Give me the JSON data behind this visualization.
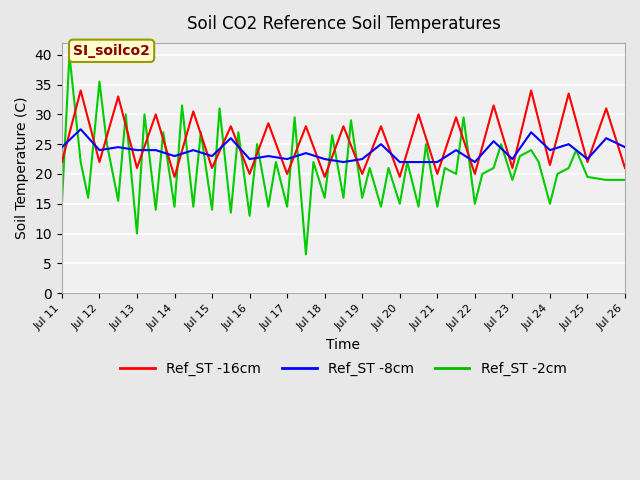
{
  "title": "Soil CO2 Reference Soil Temperatures",
  "xlabel": "Time",
  "ylabel": "Soil Temperature (C)",
  "ylim": [
    0,
    42
  ],
  "yticks": [
    0,
    5,
    10,
    15,
    20,
    25,
    30,
    35,
    40
  ],
  "bg_color": "#e8e8e8",
  "plot_bg_color": "#f0f0f0",
  "annotation_text": "SI_soilco2",
  "annotation_color": "#8b0000",
  "annotation_bg": "#ffffcc",
  "annotation_border": "#999900",
  "legend_labels": [
    "Ref_ST -16cm",
    "Ref_ST -8cm",
    "Ref_ST -2cm"
  ],
  "legend_colors": [
    "#ff0000",
    "#0000ff",
    "#00bb00"
  ],
  "line_colors": [
    "#ff0000",
    "#0000ff",
    "#00cc00"
  ],
  "xtick_labels": [
    "Jul 11",
    "Jul 12",
    "Jul 13",
    "Jul 14",
    "Jul 15",
    "Jul 16",
    "Jul 17",
    "Jul 18",
    "Jul 19",
    "Jul 20",
    "Jul 21",
    "Jul 22",
    "Jul 23",
    "Jul 24",
    "Jul 25",
    "Jul 26"
  ],
  "red_x": [
    0,
    0.5,
    1.0,
    1.5,
    2.0,
    2.5,
    3.0,
    3.5,
    4.0,
    4.5,
    5.0,
    5.5,
    6.0,
    6.5,
    7.0,
    7.5,
    8.0,
    8.5,
    9.0,
    9.5,
    10.0,
    10.5,
    11.0,
    11.5,
    12.0,
    12.5,
    13.0,
    13.5,
    14.0,
    14.5,
    15.0
  ],
  "red_y": [
    22,
    34,
    22,
    33,
    21,
    30,
    19.5,
    30.5,
    21,
    28,
    20,
    28.5,
    20,
    28,
    19.5,
    28,
    20,
    28,
    19.5,
    30,
    20,
    29.5,
    20,
    31.5,
    21,
    34,
    21.5,
    33.5,
    22,
    31,
    21
  ],
  "blue_x": [
    0,
    0.5,
    1.0,
    1.5,
    2.0,
    2.5,
    3.0,
    3.5,
    4.0,
    4.5,
    5.0,
    5.5,
    6.0,
    6.5,
    7.0,
    7.5,
    8.0,
    8.5,
    9.0,
    9.5,
    10.0,
    10.5,
    11.0,
    11.5,
    12.0,
    12.5,
    13.0,
    13.5,
    14.0,
    14.5,
    15.0
  ],
  "blue_y": [
    24.5,
    27.5,
    24,
    24.5,
    24,
    24,
    23,
    24,
    23,
    26,
    22.5,
    23,
    22.5,
    23.5,
    22.5,
    22,
    22.5,
    25,
    22,
    22,
    22,
    24,
    22,
    25.5,
    22.5,
    27,
    24,
    25,
    22.5,
    26,
    24.5
  ],
  "green_x": [
    0,
    0.2,
    0.5,
    0.7,
    1.0,
    1.2,
    1.5,
    1.7,
    2.0,
    2.2,
    2.5,
    2.7,
    3.0,
    3.2,
    3.5,
    3.7,
    4.0,
    4.2,
    4.5,
    4.7,
    5.0,
    5.2,
    5.5,
    5.7,
    6.0,
    6.2,
    6.5,
    6.7,
    7.0,
    7.2,
    7.5,
    7.7,
    8.0,
    8.2,
    8.5,
    8.7,
    9.0,
    9.2,
    9.5,
    9.7,
    10.0,
    10.2,
    10.5,
    10.7,
    11.0,
    11.2,
    11.5,
    11.7,
    12.0,
    12.2,
    12.5,
    12.7,
    13.0,
    13.2,
    13.5,
    13.7,
    14.0,
    14.5,
    15.0
  ],
  "green_y": [
    15,
    40,
    22,
    16,
    35.5,
    25,
    15.5,
    30,
    10,
    30,
    14,
    27,
    14.5,
    31.5,
    14.5,
    27,
    14,
    31,
    13.5,
    27,
    13,
    25,
    14.5,
    22,
    14.5,
    29.5,
    6.5,
    22,
    16,
    26.5,
    16,
    29,
    16,
    21,
    14.5,
    21,
    15,
    22,
    14.5,
    25,
    14.5,
    21,
    20,
    29.5,
    15,
    20,
    21,
    25,
    19,
    23,
    24,
    22,
    15,
    20,
    21,
    24,
    19.5,
    19,
    19
  ],
  "xmin": 0,
  "xmax": 15
}
